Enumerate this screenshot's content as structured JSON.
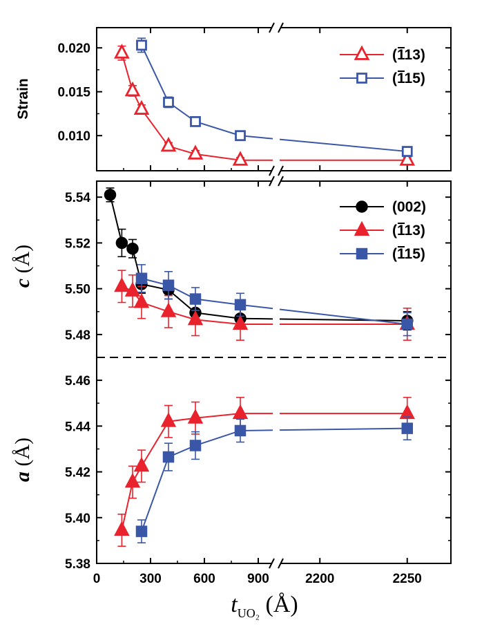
{
  "chart_data": {
    "type": "line",
    "x_axis": {
      "label": "t",
      "label_subscript": "UO₂",
      "label_unit": "(Å)",
      "tick_labels": [
        "0",
        "300",
        "600",
        "900",
        "2200",
        "2250"
      ],
      "segments": [
        {
          "range": [
            0,
            1000
          ]
        },
        {
          "range": [
            2175,
            2275
          ]
        }
      ],
      "break": true
    },
    "panels": [
      {
        "id": "strain",
        "ylabel": "Strain",
        "ylim": [
          0.006,
          0.0223
        ],
        "yticks": [
          0.01,
          0.015,
          0.02
        ],
        "ytick_labels": [
          "0.010",
          "0.015",
          "0.020"
        ],
        "series": [
          {
            "name": "(113)",
            "overbar_digit": "1",
            "marker": "triangle-open",
            "color": "#e8232d",
            "x": [
              140,
              200,
              250,
              400,
              550,
              800,
              2250
            ],
            "y": [
              0.0194,
              0.0151,
              0.013,
              0.0088,
              0.0079,
              0.0072,
              0.0072
            ],
            "err": [
              0.0008,
              0.0006,
              0.0005,
              0.0004,
              0.0004,
              0.0003,
              0.0003
            ]
          },
          {
            "name": "(115)",
            "overbar_digit": "1",
            "marker": "square-open",
            "color": "#3a57a7",
            "x": [
              250,
              400,
              550,
              800,
              2250
            ],
            "y": [
              0.0203,
              0.0138,
              0.0116,
              0.01,
              0.0082
            ],
            "err": [
              0.0008,
              0.0006,
              0.0004,
              0.0004,
              0.0003
            ]
          }
        ]
      },
      {
        "id": "c",
        "ylabel": "c",
        "ylabel_unit": "(Å)",
        "ylim": [
          5.47,
          5.547
        ],
        "yticks": [
          5.48,
          5.5,
          5.52,
          5.54
        ],
        "ytick_labels": [
          "5.48",
          "5.50",
          "5.52",
          "5.54"
        ],
        "series": [
          {
            "name": "(002)",
            "marker": "circle",
            "color": "#000000",
            "x": [
              75,
              140,
              200,
              250,
              400,
              550,
              800,
              2250
            ],
            "y": [
              5.541,
              5.52,
              5.5175,
              5.502,
              5.4995,
              5.4895,
              5.487,
              5.486
            ],
            "err": [
              0.003,
              0.006,
              0.004,
              0.004,
              0.004,
              0.004,
              0.004,
              0.004
            ]
          },
          {
            "name": "(113)",
            "overbar_digit": "1",
            "marker": "triangle",
            "color": "#e8232d",
            "x": [
              140,
              200,
              250,
              400,
              550,
              800,
              2250
            ],
            "y": [
              5.501,
              5.499,
              5.494,
              5.49,
              5.4865,
              5.4845,
              5.4845
            ],
            "err": [
              0.007,
              0.007,
              0.007,
              0.007,
              0.007,
              0.007,
              0.007
            ]
          },
          {
            "name": "(115)",
            "overbar_digit": "1",
            "marker": "square",
            "color": "#3a57a7",
            "x": [
              250,
              400,
              550,
              800,
              2250
            ],
            "y": [
              5.5045,
              5.5015,
              5.4955,
              5.493,
              5.4845
            ],
            "err": [
              0.006,
              0.006,
              0.005,
              0.005,
              0.005
            ]
          }
        ]
      },
      {
        "id": "a",
        "ylabel": "a",
        "ylabel_unit": "(Å)",
        "ylim": [
          5.38,
          5.47
        ],
        "yticks": [
          5.38,
          5.4,
          5.42,
          5.44,
          5.46
        ],
        "ytick_labels": [
          "5.38",
          "5.40",
          "5.42",
          "5.44",
          "5.46"
        ],
        "series": [
          {
            "name": "(113)",
            "overbar_digit": "1",
            "marker": "triangle",
            "color": "#e8232d",
            "x": [
              140,
              200,
              250,
              400,
              550,
              800,
              2250
            ],
            "y": [
              5.3945,
              5.4155,
              5.4225,
              5.442,
              5.4435,
              5.4455,
              5.4455
            ],
            "err": [
              0.007,
              0.007,
              0.007,
              0.007,
              0.007,
              0.007,
              0.007
            ]
          },
          {
            "name": "(115)",
            "overbar_digit": "1",
            "marker": "square",
            "color": "#3a57a7",
            "x": [
              250,
              400,
              550,
              800,
              2250
            ],
            "y": [
              5.394,
              5.4265,
              5.4315,
              5.438,
              5.439
            ],
            "err": [
              0.005,
              0.006,
              0.006,
              0.005,
              0.005
            ]
          }
        ]
      }
    ]
  }
}
